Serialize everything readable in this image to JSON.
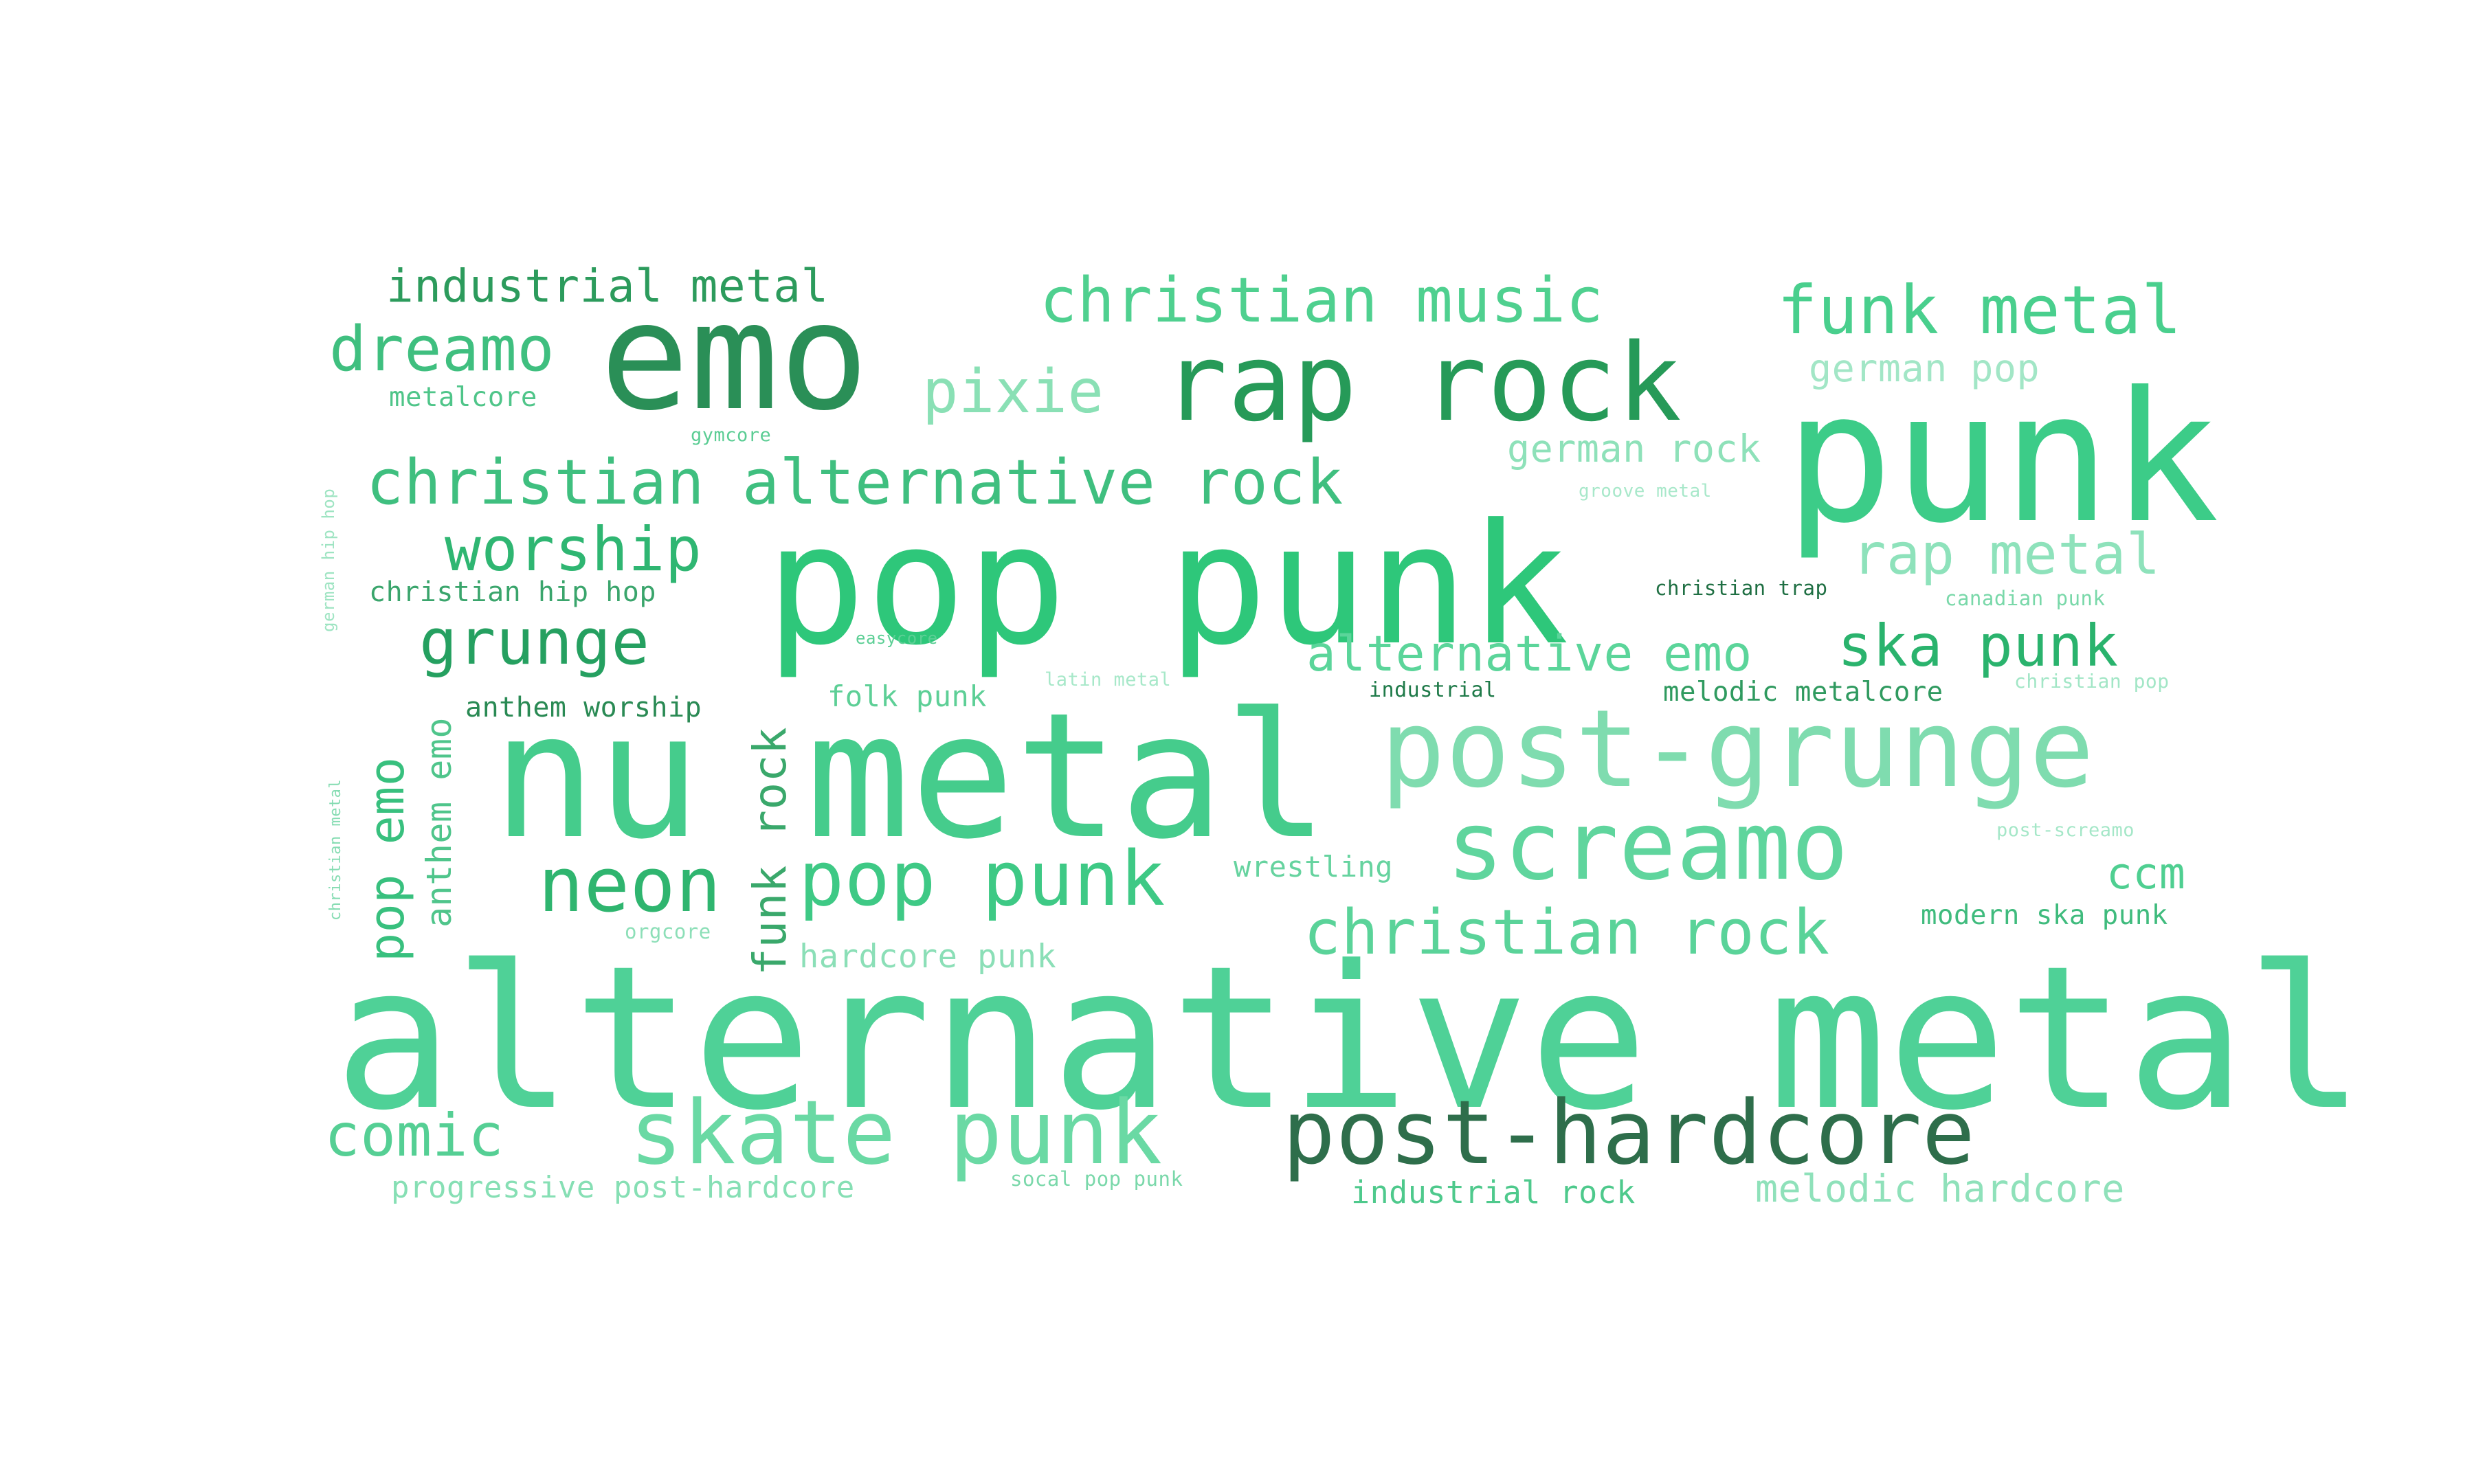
{
  "words": [
    {
      "text": "alternative metal",
      "color": "#4fd197"
    },
    {
      "text": "nu metal",
      "color": "#45cc8c"
    },
    {
      "text": "pop punk",
      "color": "#2ec77a"
    },
    {
      "text": "punk",
      "color": "#3ccc88"
    },
    {
      "text": "emo",
      "color": "#2a8f57"
    },
    {
      "text": "post-grunge",
      "color": "#7fdcaf"
    },
    {
      "text": "rap rock",
      "color": "#269a58"
    },
    {
      "text": "post-hardcore",
      "color": "#2e6e4b"
    },
    {
      "text": "screamo",
      "color": "#5fd59d"
    },
    {
      "text": "skate punk",
      "color": "#6ad9a4"
    },
    {
      "text": "pop punk",
      "color": "#3ec985"
    },
    {
      "text": "christian music",
      "color": "#4fd08f"
    },
    {
      "text": "funk metal",
      "color": "#49cf8d"
    },
    {
      "text": "christian alternative rock",
      "color": "#3fbf7f"
    },
    {
      "text": "christian rock",
      "color": "#5ad399"
    },
    {
      "text": "neon",
      "color": "#2fb56f"
    },
    {
      "text": "dreamo",
      "color": "#3fbf7f"
    },
    {
      "text": "pixie",
      "color": "#8ae0b5"
    },
    {
      "text": "worship",
      "color": "#2fb672"
    },
    {
      "text": "grunge",
      "color": "#25a060"
    },
    {
      "text": "comic",
      "color": "#55cf94"
    },
    {
      "text": "rap metal",
      "color": "#8ee2bb"
    },
    {
      "text": "ska punk",
      "color": "#2ab36d"
    },
    {
      "text": "alternative emo",
      "color": "#5bd59a"
    },
    {
      "text": "industrial metal",
      "color": "#2c9b5c"
    },
    {
      "text": "ccm",
      "color": "#4fcf91"
    },
    {
      "text": "german pop",
      "color": "#a2e6c6"
    },
    {
      "text": "german rock",
      "color": "#8ee1b9"
    },
    {
      "text": "hardcore punk",
      "color": "#8bdfb7"
    },
    {
      "text": "melodic hardcore",
      "color": "#8fe1ba"
    },
    {
      "text": "progressive post-hardcore",
      "color": "#86dfb4"
    },
    {
      "text": "industrial rock",
      "color": "#4ec98c"
    },
    {
      "text": "wrestling",
      "color": "#66d39f"
    },
    {
      "text": "folk punk",
      "color": "#5dcf96"
    },
    {
      "text": "christian hip hop",
      "color": "#3aa56c"
    },
    {
      "text": "anthem worship",
      "color": "#2a8a54"
    },
    {
      "text": "melodic metalcore",
      "color": "#2f9a5f"
    },
    {
      "text": "modern ska punk",
      "color": "#3fbb7d"
    },
    {
      "text": "metalcore",
      "color": "#4fc589"
    },
    {
      "text": "christian trap",
      "color": "#1f6f43"
    },
    {
      "text": "industrial",
      "color": "#1f7a49"
    },
    {
      "text": "canadian punk",
      "color": "#79d8a9"
    },
    {
      "text": "christian pop",
      "color": "#a2e6c6"
    },
    {
      "text": "post-screamo",
      "color": "#a5e7c8"
    },
    {
      "text": "latin metal",
      "color": "#a7e8c9"
    },
    {
      "text": "easycore",
      "color": "#5ccf95"
    },
    {
      "text": "gymcore",
      "color": "#5bcd94"
    },
    {
      "text": "groove metal",
      "color": "#a8e8ca"
    },
    {
      "text": "socal pop punk",
      "color": "#7ad8aa"
    },
    {
      "text": "orgcore",
      "color": "#8ddfb8"
    },
    {
      "text": "funk rock",
      "color": "#3aa86b"
    },
    {
      "text": "pop emo",
      "color": "#38c07e"
    },
    {
      "text": "anthem emo",
      "color": "#4fc58b"
    },
    {
      "text": "german hip hop",
      "color": "#9ee4c2"
    },
    {
      "text": "christian metal",
      "color": "#85dcb2"
    }
  ]
}
